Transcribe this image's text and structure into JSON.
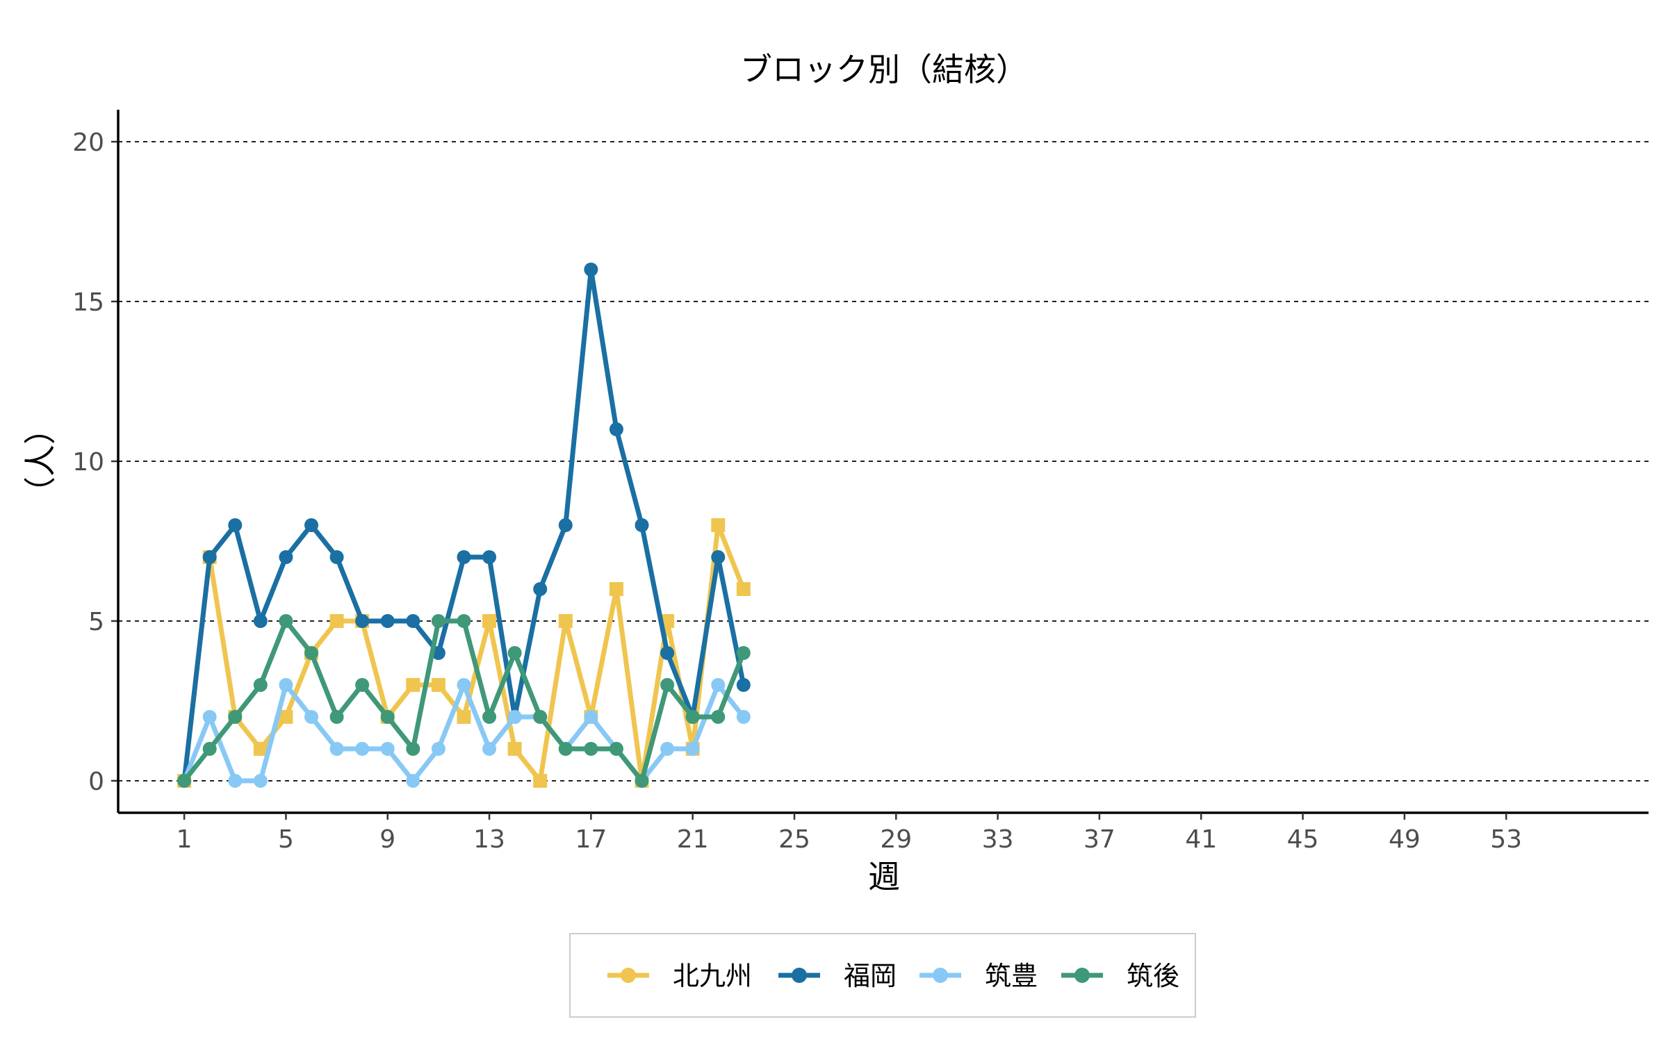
{
  "chart_data": {
    "type": "line",
    "title": "ブロック別（結核）",
    "xlabel": "週",
    "ylabel": "（人）",
    "xlim": [
      -1.6,
      58.6
    ],
    "ylim": [
      -1,
      21
    ],
    "x_ticks": [
      1,
      5,
      9,
      13,
      17,
      21,
      25,
      29,
      33,
      37,
      41,
      45,
      49,
      53
    ],
    "y_ticks": [
      0,
      5,
      10,
      15,
      20
    ],
    "grid": "horizontal-dashed",
    "legend_position": "bottom",
    "x": [
      1,
      2,
      3,
      4,
      5,
      6,
      7,
      8,
      9,
      10,
      11,
      12,
      13,
      14,
      15,
      16,
      17,
      18,
      19,
      20,
      21,
      22,
      23
    ],
    "series": [
      {
        "name": "北九州",
        "color": "#F0C54F",
        "marker": "square",
        "values": [
          0,
          7,
          2,
          1,
          2,
          4,
          5,
          5,
          2,
          3,
          3,
          2,
          5,
          1,
          0,
          5,
          2,
          6,
          0,
          5,
          1,
          8,
          6
        ]
      },
      {
        "name": "福岡",
        "color": "#1A6FA3",
        "marker": "circle",
        "values": [
          0,
          7,
          8,
          5,
          7,
          8,
          7,
          5,
          5,
          5,
          4,
          7,
          7,
          2,
          6,
          8,
          16,
          11,
          8,
          4,
          2,
          7,
          3
        ]
      },
      {
        "name": "筑豊",
        "color": "#88C8F5",
        "marker": "circle",
        "values": [
          0,
          2,
          0,
          0,
          3,
          2,
          1,
          1,
          1,
          0,
          1,
          3,
          1,
          2,
          2,
          1,
          2,
          1,
          0,
          1,
          1,
          3,
          2
        ]
      },
      {
        "name": "筑後",
        "color": "#3F9878",
        "marker": "circle",
        "values": [
          0,
          1,
          2,
          3,
          5,
          4,
          2,
          3,
          2,
          1,
          5,
          5,
          2,
          4,
          2,
          1,
          1,
          1,
          0,
          3,
          2,
          2,
          4
        ]
      }
    ]
  }
}
